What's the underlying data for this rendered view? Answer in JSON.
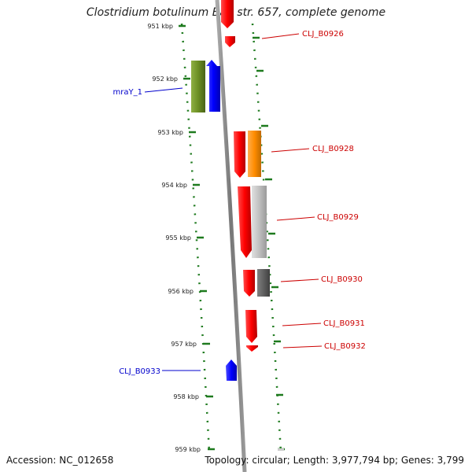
{
  "title": "Clostridium botulinum Ba4 str. 657, complete genome",
  "accession": "Accession: NC_012658",
  "topology": "Topology: circular; Length: 3,977,794 bp; Genes: 3,799",
  "ticks": [
    "951 kbp",
    "952 kbp",
    "953 kbp",
    "954 kbp",
    "955 kbp",
    "956 kbp",
    "957 kbp",
    "958 kbp",
    "959 kbp"
  ],
  "labels": {
    "cbo926": "CLJ_B0926",
    "mray": "mraY_1",
    "cbo928": "CLJ_B0928",
    "cbo929": "CLJ_B0929",
    "cbo930": "CLJ_B0930",
    "cbo931": "CLJ_B0931",
    "cbo932": "CLJ_B0932",
    "cbo933": "CLJ_B0933"
  },
  "colors": {
    "red": "#e60000",
    "blue": "#0000ff",
    "olive": "#6b8e23",
    "orange": "#ff8c00",
    "lightgray": "#c0c0c0",
    "darkgray": "#606060",
    "backbone": "#888888",
    "dots": "#1e7a1e",
    "label_red": "#cc0000",
    "label_blue": "#0000cc"
  }
}
